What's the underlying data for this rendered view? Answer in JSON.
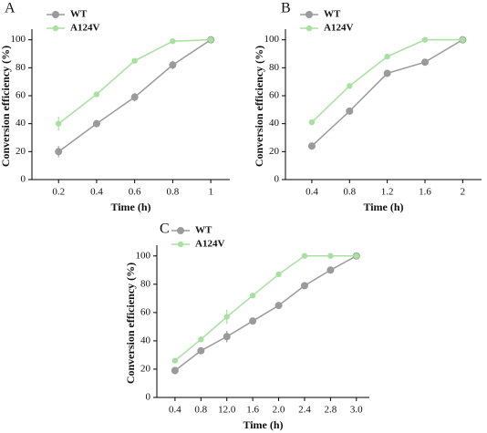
{
  "chart_data": [
    {
      "type": "line",
      "title": "A",
      "xlabel": "Time (h)",
      "ylabel": "Conversion efficiency (%)",
      "categories": [
        "0.2",
        "0.4",
        "0.6",
        "0.8",
        "1"
      ],
      "series": [
        {
          "name": "WT",
          "color": "#9a9a9a",
          "values": [
            20,
            40,
            59,
            82,
            100
          ],
          "errors": [
            4,
            1,
            3,
            3,
            1
          ]
        },
        {
          "name": "A124V",
          "color": "#a8e0a0",
          "values": [
            40,
            61,
            85,
            99,
            100
          ],
          "errors": [
            5,
            1,
            1,
            1,
            1
          ]
        }
      ],
      "ylim": [
        0,
        105
      ],
      "yticks": [
        0,
        20,
        40,
        60,
        80,
        100
      ]
    },
    {
      "type": "line",
      "title": "B",
      "xlabel": "Time (h)",
      "ylabel": "Conversion efficiency (%)",
      "categories": [
        "0.4",
        "0.8",
        "1.2",
        "1.6",
        "2"
      ],
      "series": [
        {
          "name": "WT",
          "color": "#9a9a9a",
          "values": [
            24,
            49,
            76,
            84,
            100
          ],
          "errors": [
            1,
            1,
            2,
            2,
            1
          ]
        },
        {
          "name": "A124V",
          "color": "#a8e0a0",
          "values": [
            41,
            67,
            88,
            100,
            100
          ],
          "errors": [
            1,
            2,
            1,
            1,
            1
          ]
        }
      ],
      "ylim": [
        0,
        105
      ],
      "yticks": [
        0,
        20,
        40,
        60,
        80,
        100
      ]
    },
    {
      "type": "line",
      "title": "C",
      "xlabel": "Time (h)",
      "ylabel": "Conversion efficiency (%)",
      "categories": [
        "0.4",
        "0.8",
        "12.0",
        "1.6",
        "2.0",
        "2.4",
        "2.8",
        "3.0"
      ],
      "series": [
        {
          "name": "WT",
          "color": "#9a9a9a",
          "values": [
            19,
            33,
            43,
            54,
            65,
            79,
            90,
            100
          ],
          "errors": [
            1,
            2,
            4,
            2,
            2,
            1,
            1,
            1
          ]
        },
        {
          "name": "A124V",
          "color": "#a8e0a0",
          "values": [
            26,
            41,
            57,
            72,
            87,
            100,
            100,
            100
          ],
          "errors": [
            1,
            1,
            5,
            1,
            2,
            1,
            1,
            1
          ]
        }
      ],
      "ylim": [
        0,
        105
      ],
      "yticks": [
        0,
        20,
        40,
        60,
        80,
        100
      ]
    }
  ]
}
